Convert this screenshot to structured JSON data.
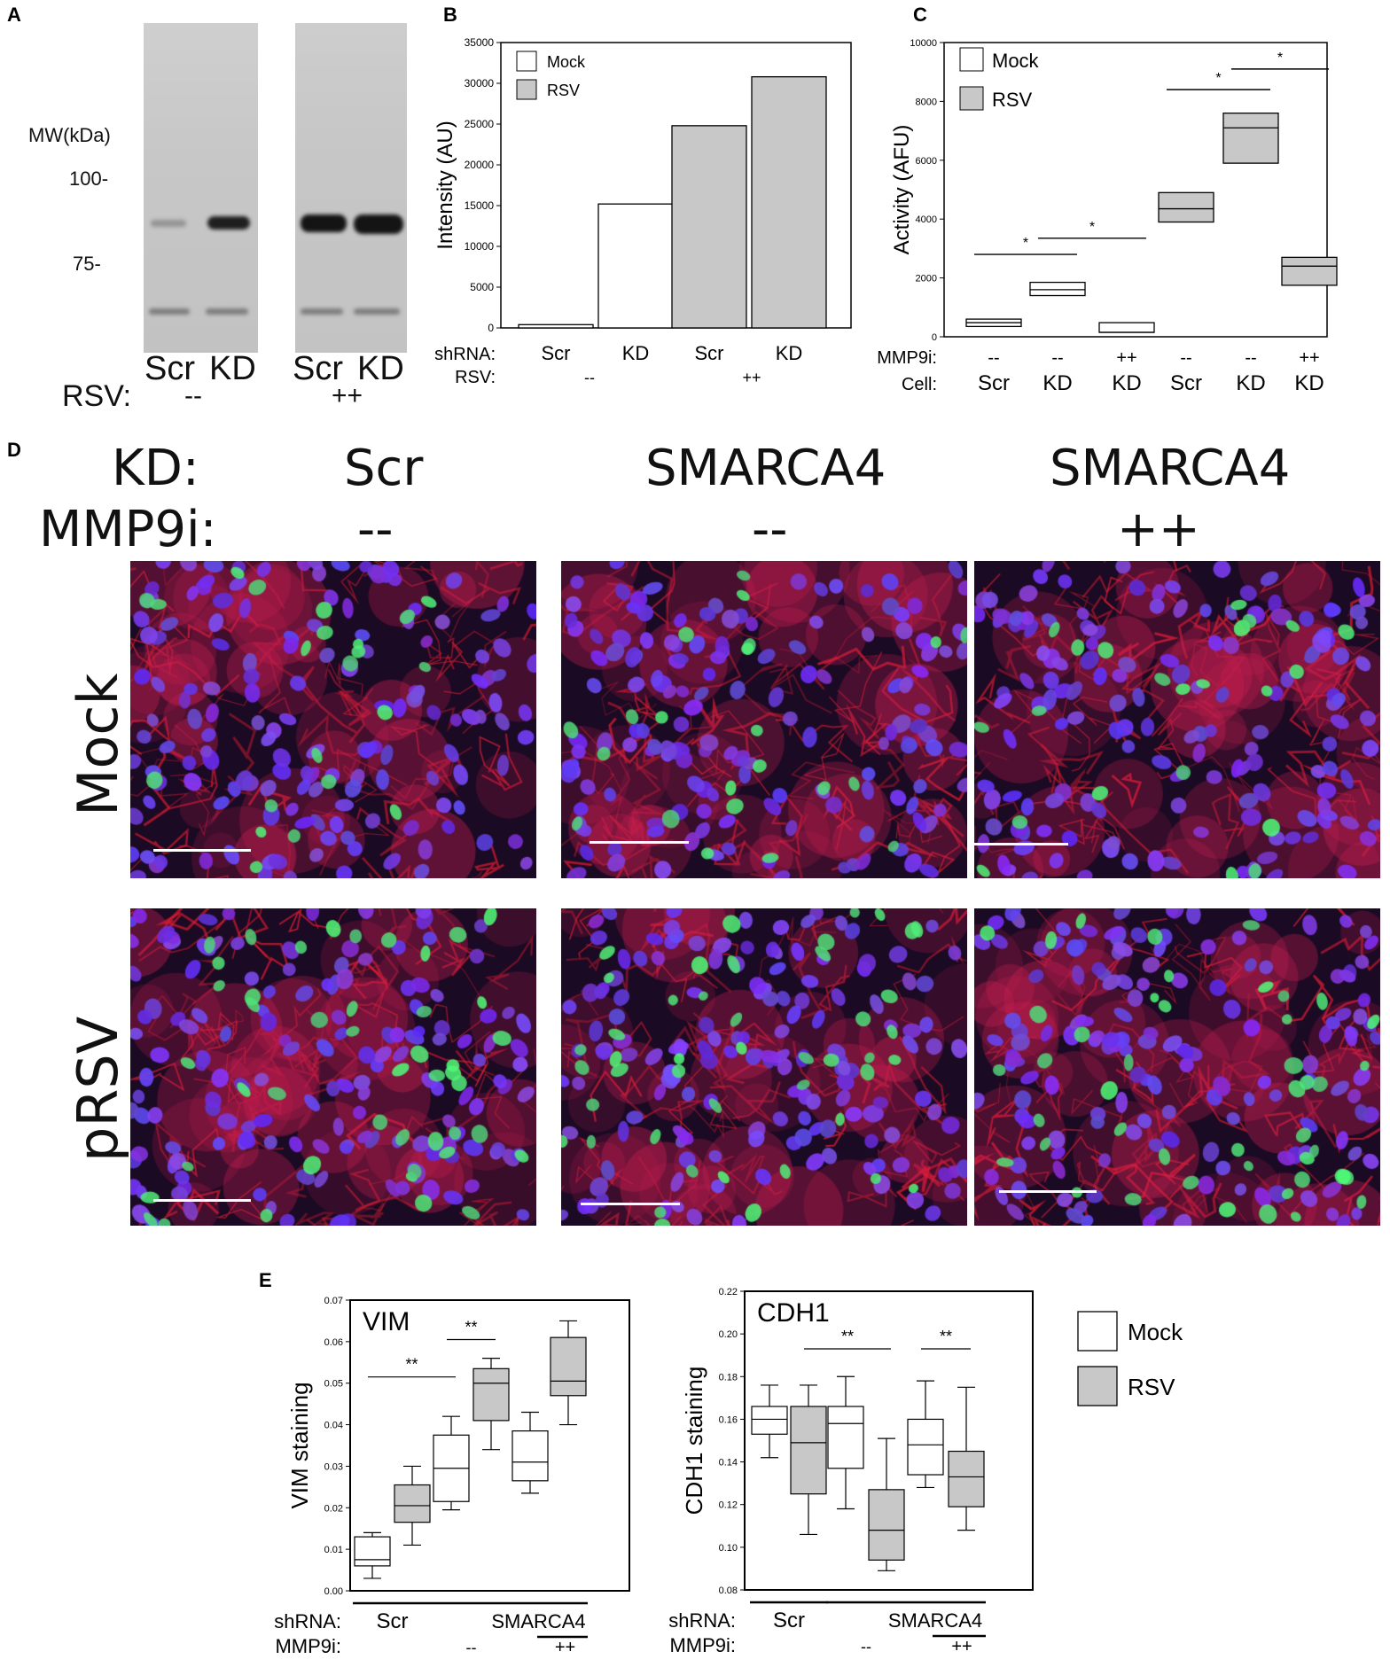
{
  "panels": {
    "A": "A",
    "B": "B",
    "C": "C",
    "D": "D",
    "E": "E"
  },
  "panel_a": {
    "mw_label": "MW(kDa)",
    "markers": [
      "100-",
      "75-"
    ],
    "lanes": [
      "Scr",
      "KD",
      "Scr",
      "KD"
    ],
    "rsv_label": "RSV:",
    "rsv_values": [
      "--",
      "++"
    ]
  },
  "panel_d": {
    "kd_label": "KD:",
    "mmp_label": "MMP9i:",
    "columns": [
      {
        "kd": "Scr",
        "mmp": "--"
      },
      {
        "kd": "SMARCA4",
        "mmp": "--"
      },
      {
        "kd": "SMARCA4",
        "mmp": "++"
      }
    ],
    "rows": [
      "Mock",
      "pRSV"
    ]
  },
  "colors": {
    "mock": "#ffffff",
    "rsv": "#c8c8c8",
    "axis": "#000000"
  },
  "chart_data": [
    {
      "id": "B",
      "type": "bar",
      "ylabel": "Intensity (AU)",
      "ylim": [
        0,
        35000
      ],
      "yticks": [
        0,
        5000,
        10000,
        15000,
        20000,
        25000,
        30000,
        35000
      ],
      "legend": [
        "Mock",
        "RSV"
      ],
      "categories": [
        "Scr",
        "KD",
        "Scr",
        "KD"
      ],
      "values": [
        400,
        15200,
        24800,
        30800
      ],
      "groups": [
        "Mock",
        "Mock",
        "RSV",
        "RSV"
      ],
      "row_labels": [
        "shRNA:",
        "RSV:"
      ],
      "rsv_values": [
        "--",
        "++"
      ]
    },
    {
      "id": "C",
      "type": "box",
      "ylabel": "Activity (AFU)",
      "ylim": [
        0,
        10000
      ],
      "yticks": [
        0,
        2000,
        4000,
        6000,
        8000,
        10000
      ],
      "legend": [
        "Mock",
        "RSV"
      ],
      "row_labels": [
        "MMP9i:",
        "Cell:"
      ],
      "boxes": [
        {
          "mmp": "--",
          "cell": "Scr",
          "group": "Mock",
          "q1": 350,
          "median": 480,
          "q3": 600
        },
        {
          "mmp": "--",
          "cell": "KD",
          "group": "Mock",
          "q1": 1400,
          "median": 1600,
          "q3": 1850
        },
        {
          "mmp": "++",
          "cell": "KD",
          "group": "Mock",
          "q1": 150,
          "median": 150,
          "q3": 480
        },
        {
          "mmp": "--",
          "cell": "Scr",
          "group": "RSV",
          "q1": 3900,
          "median": 4350,
          "q3": 4900
        },
        {
          "mmp": "--",
          "cell": "KD",
          "group": "RSV",
          "q1": 5900,
          "median": 7100,
          "q3": 7600
        },
        {
          "mmp": "++",
          "cell": "KD",
          "group": "RSV",
          "q1": 1750,
          "median": 2400,
          "q3": 2700
        }
      ],
      "significance": [
        {
          "from": 0,
          "to": 1,
          "y": 2800,
          "label": "*"
        },
        {
          "from": 1,
          "to": 2,
          "y": 3350,
          "label": "*"
        },
        {
          "from": 3,
          "to": 4,
          "y": 8400,
          "label": "*"
        },
        {
          "from": 4,
          "to": 5,
          "y": 9100,
          "label": "*"
        }
      ]
    },
    {
      "id": "E-VIM",
      "type": "box",
      "title": "VIM",
      "ylabel": "VIM staining",
      "ylim": [
        0,
        0.07
      ],
      "yticks": [
        "0.00",
        "0.01",
        "0.02",
        "0.03",
        "0.04",
        "0.05",
        "0.06",
        "0.07"
      ],
      "boxes": [
        {
          "group": "Mock",
          "min": 0.003,
          "q1": 0.006,
          "median": 0.0075,
          "q3": 0.013,
          "max": 0.014
        },
        {
          "group": "RSV",
          "min": 0.011,
          "q1": 0.0165,
          "median": 0.0205,
          "q3": 0.0255,
          "max": 0.03
        },
        {
          "group": "Mock",
          "min": 0.0195,
          "q1": 0.0215,
          "median": 0.0295,
          "q3": 0.0375,
          "max": 0.042
        },
        {
          "group": "RSV",
          "min": 0.034,
          "q1": 0.041,
          "median": 0.05,
          "q3": 0.0535,
          "max": 0.056
        },
        {
          "group": "Mock",
          "min": 0.0235,
          "q1": 0.0265,
          "median": 0.031,
          "q3": 0.0385,
          "max": 0.043
        },
        {
          "group": "RSV",
          "min": 0.04,
          "q1": 0.047,
          "median": 0.0505,
          "q3": 0.061,
          "max": 0.065
        }
      ],
      "significance": [
        {
          "from": 0,
          "to": 2,
          "y": 0.0515,
          "label": "**"
        },
        {
          "from": 2,
          "to": 3,
          "y": 0.0605,
          "label": "**"
        }
      ],
      "row_labels": [
        "shRNA:",
        "MMP9i:"
      ],
      "shrna_values": [
        "Scr",
        "SMARCA4"
      ],
      "mmp_values": [
        "--",
        "++"
      ]
    },
    {
      "id": "E-CDH1",
      "type": "box",
      "title": "CDH1",
      "ylabel": "CDH1 staining",
      "ylim": [
        0.08,
        0.22
      ],
      "yticks": [
        "0.08",
        "0.10",
        "0.12",
        "0.14",
        "0.16",
        "0.18",
        "0.20",
        "0.22"
      ],
      "legend": [
        "Mock",
        "RSV"
      ],
      "boxes": [
        {
          "group": "Mock",
          "min": 0.142,
          "q1": 0.153,
          "median": 0.16,
          "q3": 0.166,
          "max": 0.176
        },
        {
          "group": "RSV",
          "min": 0.106,
          "q1": 0.125,
          "median": 0.149,
          "q3": 0.166,
          "max": 0.176
        },
        {
          "group": "Mock",
          "min": 0.118,
          "q1": 0.137,
          "median": 0.158,
          "q3": 0.166,
          "max": 0.18
        },
        {
          "group": "RSV",
          "min": 0.089,
          "q1": 0.094,
          "median": 0.108,
          "q3": 0.127,
          "max": 0.151
        },
        {
          "group": "Mock",
          "min": 0.128,
          "q1": 0.134,
          "median": 0.148,
          "q3": 0.16,
          "max": 0.178
        },
        {
          "group": "RSV",
          "min": 0.108,
          "q1": 0.119,
          "median": 0.133,
          "q3": 0.145,
          "max": 0.175
        }
      ],
      "significance": [
        {
          "from": 1,
          "to": 3,
          "y": 0.193,
          "label": "**"
        },
        {
          "from": 4,
          "to": 5,
          "y": 0.193,
          "label": "**"
        }
      ],
      "row_labels": [
        "shRNA:",
        "MMP9i:"
      ],
      "shrna_values": [
        "Scr",
        "SMARCA4"
      ],
      "mmp_values": [
        "--",
        "++"
      ]
    }
  ]
}
